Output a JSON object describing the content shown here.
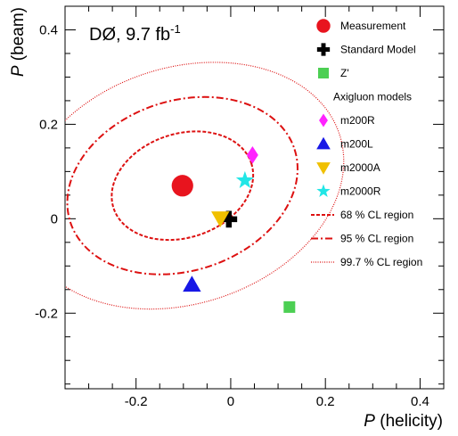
{
  "chart_data": {
    "type": "scatter",
    "title": "DØ, 9.7 fb",
    "title_superscript": "-1",
    "xlabel_italic": "P",
    "xlabel_rest": " (helicity)",
    "ylabel_italic": "P",
    "ylabel_rest": " (beam)",
    "xlim": [
      -0.35,
      0.45
    ],
    "ylim": [
      -0.36,
      0.45
    ],
    "x_ticks": [
      -0.2,
      0,
      0.2,
      0.4
    ],
    "x_tick_labels": [
      "-0.2",
      "0",
      "0.2",
      "0.4"
    ],
    "y_ticks": [
      -0.2,
      0,
      0.2,
      0.4
    ],
    "y_tick_labels": [
      "-0.2",
      "0",
      "0.2",
      "0.4"
    ],
    "grid": false,
    "legend_position": "top-right",
    "points": [
      {
        "name": "Measurement",
        "marker": "circle",
        "color": "#e8141e",
        "x": -0.102,
        "y": 0.07
      },
      {
        "name": "Standard Model",
        "marker": "cross",
        "color": "#000000",
        "x": -0.004,
        "y": -0.001
      },
      {
        "name": "Z'",
        "marker": "square",
        "color": "#4ccf53",
        "x": 0.124,
        "y": -0.187
      },
      {
        "name": "m200R",
        "marker": "diamond",
        "color": "#ff22ff",
        "x": 0.046,
        "y": 0.135
      },
      {
        "name": "m200L",
        "marker": "triangle-up",
        "color": "#1818e6",
        "x": -0.082,
        "y": -0.14
      },
      {
        "name": "m2000A",
        "marker": "triangle-down",
        "color": "#f0c000",
        "x": -0.022,
        "y": 0.001
      },
      {
        "name": "m2000R",
        "marker": "star",
        "color": "#22e6e6",
        "x": 0.03,
        "y": 0.081
      }
    ],
    "contours": [
      {
        "name": "68 % CL region",
        "style": "dashed",
        "color": "#dd1111",
        "center": [
          -0.102,
          0.07
        ],
        "rx": 0.153,
        "ry": 0.11
      },
      {
        "name": "95 % CL region",
        "style": "dashdot",
        "color": "#dd1111",
        "center": [
          -0.102,
          0.07
        ],
        "rx": 0.249,
        "ry": 0.18
      },
      {
        "name": "99.7 % CL region",
        "style": "dotted",
        "color": "#dd1111",
        "center": [
          -0.102,
          0.07
        ],
        "rx": 0.349,
        "ry": 0.25
      }
    ],
    "ellipse_tilt_deg": 18,
    "legend_header": "Axigluon models"
  }
}
